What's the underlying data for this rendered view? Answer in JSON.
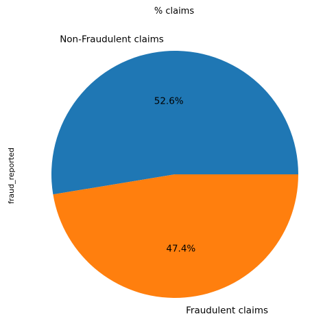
{
  "chart_data": {
    "type": "pie",
    "title": "% claims",
    "ylabel": "fraud_reported",
    "slices": [
      {
        "label": "Non-Fraudulent claims",
        "value": 52.6,
        "pct_label": "52.6%",
        "color": "#1f77b4"
      },
      {
        "label": "Fraudulent claims",
        "value": 47.4,
        "pct_label": "47.4%",
        "color": "#ff7f0e"
      }
    ],
    "start_angle_deg": 0,
    "direction": "counterclockwise"
  }
}
